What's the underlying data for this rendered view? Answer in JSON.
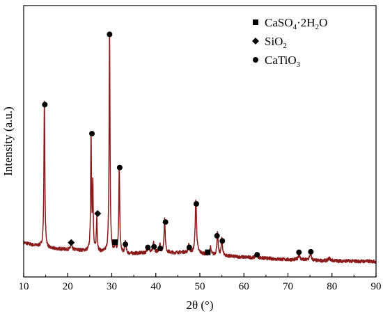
{
  "chart_data": {
    "type": "line",
    "xlabel": "2θ (°)",
    "ylabel": "Intensity (a.u.)",
    "xlim": [
      10,
      90
    ],
    "ylim": [
      0,
      100
    ],
    "x_ticks": [
      "10",
      "20",
      "30",
      "40",
      "50",
      "60",
      "70",
      "80",
      "90"
    ],
    "y_ticks_labeled": false,
    "grid": false,
    "line_color": "#8b1a1a",
    "legend_position": "top-right",
    "legend": [
      {
        "marker": "square",
        "label": "CaSO",
        "sub": "4",
        "tail": "·2H",
        "sub2": "2",
        "tail2": "O"
      },
      {
        "marker": "diamond",
        "label": "SiO",
        "sub": "2",
        "tail": "",
        "sub2": "",
        "tail2": ""
      },
      {
        "marker": "circle",
        "label": "CaTiO",
        "sub": "3",
        "tail": "",
        "sub2": "",
        "tail2": ""
      }
    ],
    "baseline": [
      [
        10,
        9.0
      ],
      [
        12,
        8.0
      ],
      [
        14,
        7.4
      ],
      [
        16,
        6.5
      ],
      [
        18,
        6.4
      ],
      [
        20,
        6.2
      ],
      [
        22,
        6.0
      ],
      [
        24,
        5.6
      ],
      [
        26,
        5.3
      ],
      [
        28,
        5.0
      ],
      [
        30,
        4.8
      ],
      [
        32,
        4.6
      ],
      [
        34,
        4.4
      ],
      [
        36,
        4.6
      ],
      [
        38,
        4.8
      ],
      [
        40,
        4.9
      ],
      [
        42,
        4.9
      ],
      [
        44,
        4.8
      ],
      [
        46,
        5.0
      ],
      [
        48,
        4.7
      ],
      [
        50,
        4.5
      ],
      [
        52,
        4.0
      ],
      [
        54,
        3.8
      ],
      [
        56,
        3.5
      ],
      [
        58,
        3.2
      ],
      [
        60,
        3.0
      ],
      [
        62,
        2.8
      ],
      [
        64,
        2.6
      ],
      [
        66,
        2.4
      ],
      [
        68,
        2.2
      ],
      [
        70,
        2.0
      ],
      [
        72,
        1.9
      ],
      [
        74,
        1.8
      ],
      [
        76,
        1.6
      ],
      [
        78,
        1.5
      ],
      [
        80,
        1.5
      ],
      [
        82,
        1.4
      ],
      [
        84,
        1.4
      ],
      [
        86,
        1.3
      ],
      [
        88,
        1.3
      ],
      [
        90,
        1.2
      ]
    ],
    "peaks": [
      {
        "x": 14.7,
        "height": 62.0,
        "width": 0.12
      },
      {
        "x": 20.8,
        "height": 2.5,
        "width": 0.15
      },
      {
        "x": 25.3,
        "height": 48.0,
        "width": 0.11
      },
      {
        "x": 25.7,
        "height": 28.0,
        "width": 0.1
      },
      {
        "x": 26.6,
        "height": 14.0,
        "width": 0.12
      },
      {
        "x": 29.5,
        "height": 91.0,
        "width": 0.12
      },
      {
        "x": 30.8,
        "height": 4.0,
        "width": 0.15
      },
      {
        "x": 31.7,
        "height": 36.0,
        "width": 0.12
      },
      {
        "x": 33.1,
        "height": 5.0,
        "width": 0.15
      },
      {
        "x": 38.3,
        "height": 3.0,
        "width": 0.18
      },
      {
        "x": 39.5,
        "height": 4.0,
        "width": 0.18
      },
      {
        "x": 40.9,
        "height": 3.5,
        "width": 0.18
      },
      {
        "x": 42.0,
        "height": 14.0,
        "width": 0.15
      },
      {
        "x": 47.5,
        "height": 3.5,
        "width": 0.18
      },
      {
        "x": 49.1,
        "height": 22.0,
        "width": 0.18
      },
      {
        "x": 52.4,
        "height": 3.0,
        "width": 0.18
      },
      {
        "x": 54.0,
        "height": 9.0,
        "width": 0.16
      },
      {
        "x": 55.0,
        "height": 7.0,
        "width": 0.16
      },
      {
        "x": 62.9,
        "height": 1.5,
        "width": 0.25
      },
      {
        "x": 72.5,
        "height": 2.0,
        "width": 0.25
      },
      {
        "x": 75.1,
        "height": 2.5,
        "width": 0.25
      },
      {
        "x": 79.4,
        "height": 1.0,
        "width": 0.3
      }
    ],
    "markers": [
      {
        "x": 14.8,
        "y": 66,
        "type": "circle"
      },
      {
        "x": 20.8,
        "y": 9,
        "type": "diamond"
      },
      {
        "x": 25.5,
        "y": 54,
        "type": "circle"
      },
      {
        "x": 26.8,
        "y": 21,
        "type": "diamond"
      },
      {
        "x": 29.5,
        "y": 95,
        "type": "circle"
      },
      {
        "x": 30.7,
        "y": 9.2,
        "type": "square"
      },
      {
        "x": 31.8,
        "y": 40,
        "type": "circle"
      },
      {
        "x": 33.1,
        "y": 8.3,
        "type": "circle"
      },
      {
        "x": 38.2,
        "y": 7,
        "type": "circle"
      },
      {
        "x": 39.6,
        "y": 7.3,
        "type": "circle"
      },
      {
        "x": 41.0,
        "y": 6.6,
        "type": "circle"
      },
      {
        "x": 42.2,
        "y": 17.5,
        "type": "circle"
      },
      {
        "x": 47.6,
        "y": 7,
        "type": "circle"
      },
      {
        "x": 49.2,
        "y": 25,
        "type": "circle"
      },
      {
        "x": 51.8,
        "y": 5,
        "type": "square"
      },
      {
        "x": 53.9,
        "y": 11.8,
        "type": "circle"
      },
      {
        "x": 55.1,
        "y": 9.7,
        "type": "circle"
      },
      {
        "x": 63.0,
        "y": 4,
        "type": "circle"
      },
      {
        "x": 72.5,
        "y": 5,
        "type": "circle"
      },
      {
        "x": 75.2,
        "y": 5.2,
        "type": "circle"
      }
    ]
  }
}
